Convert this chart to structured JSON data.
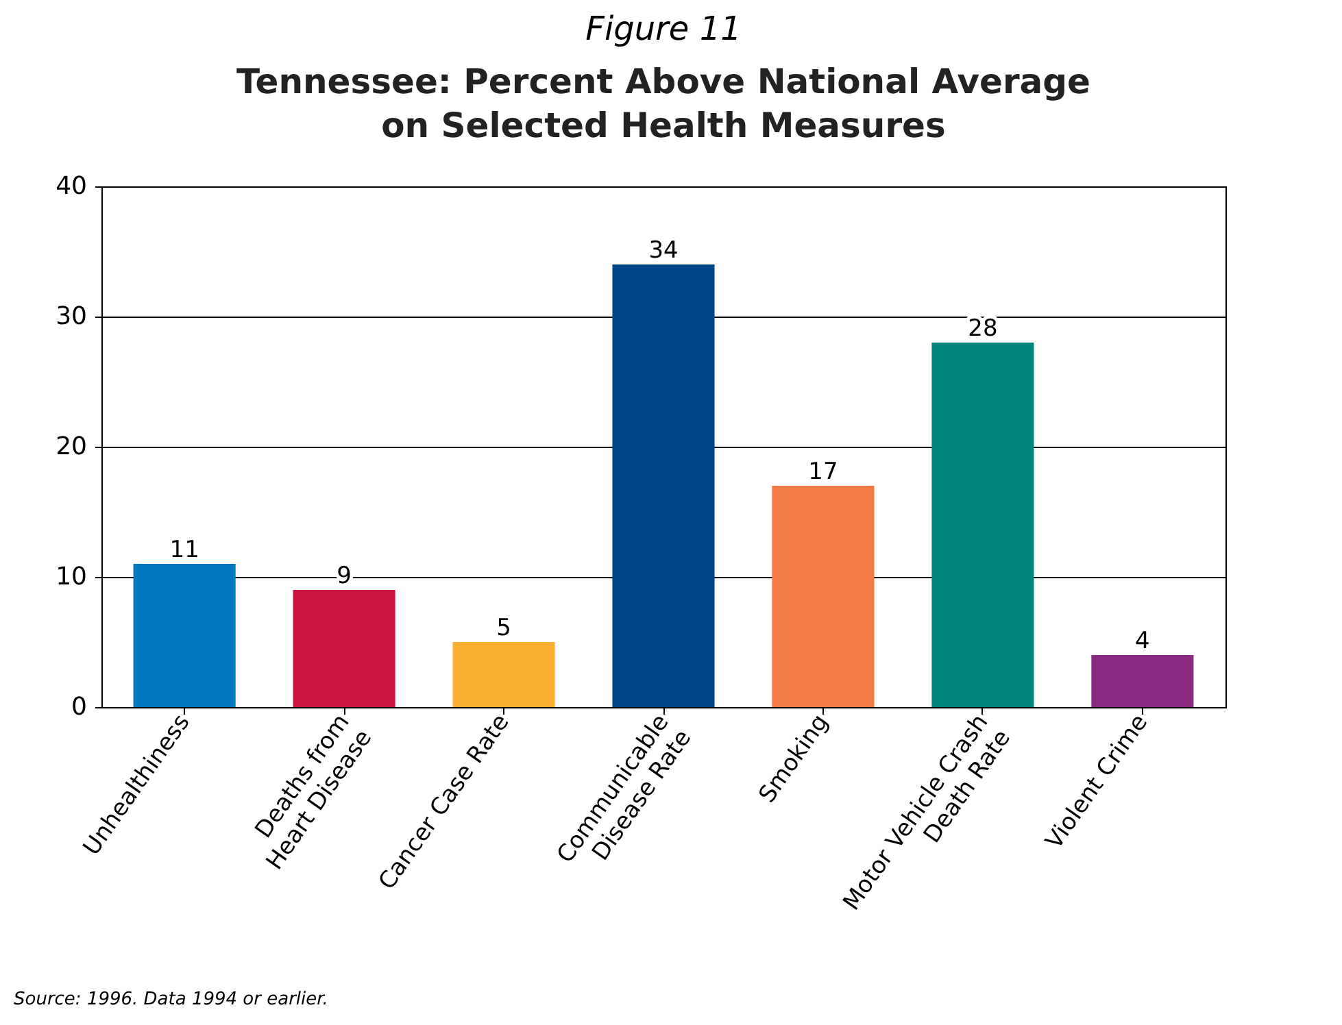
{
  "chart_data": {
    "type": "bar",
    "title": "Figure 11",
    "subtitle": "Tennessee:  Percent Above National Average\non Selected Health Measures",
    "categories": [
      "Unhealthiness",
      "Deaths from\nHeart Disease",
      "Cancer Case Rate",
      "Communicable\nDisease Rate",
      "Smoking",
      "Motor Vehicle Crash\nDeath Rate",
      "Violent Crime"
    ],
    "values": [
      11,
      9,
      5,
      34,
      17,
      28,
      4
    ],
    "colors": [
      "#0079c1",
      "#cc1440",
      "#fbb034",
      "#004586",
      "#f37a44",
      "#00857f",
      "#8a2a83"
    ],
    "ylim": [
      0,
      40
    ],
    "yticks": [
      0,
      10,
      20,
      30,
      40
    ],
    "grid": "y",
    "data_labels": true,
    "annotations": [
      "Source: 1996. Data 1994 or earlier."
    ]
  }
}
